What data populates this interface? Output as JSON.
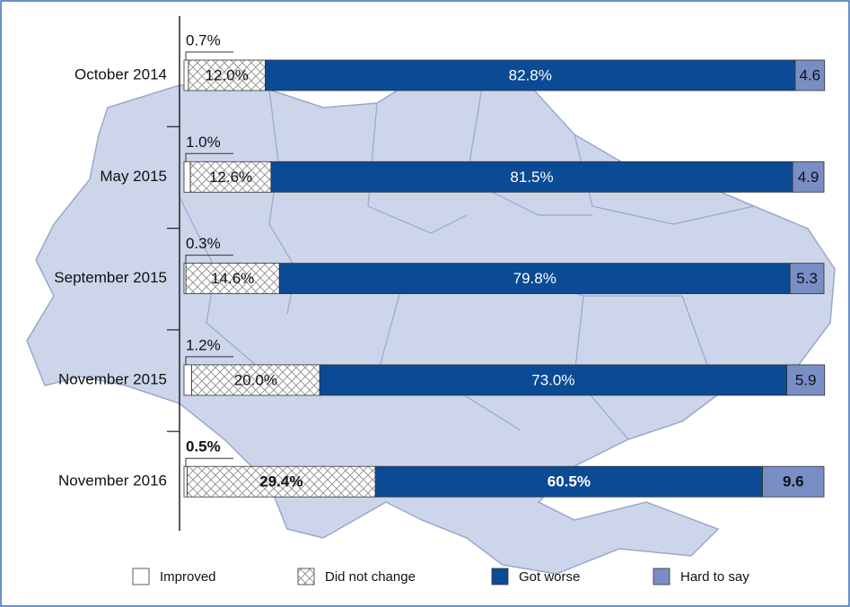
{
  "chart_data": {
    "type": "stacked-barh",
    "categories": [
      "October 2014",
      "May 2015",
      "September 2015",
      "November 2015",
      "November 2016"
    ],
    "xlim": [
      0,
      100
    ],
    "series": [
      {
        "name": "Improved",
        "color": "#ffffff",
        "values": [
          0.7,
          1.0,
          0.3,
          1.2,
          0.5
        ],
        "value_labels": [
          "0.7%",
          "1.0%",
          "0.3%",
          "1.2%",
          "0.5%"
        ]
      },
      {
        "name": "Did not change",
        "color": "#ffffff",
        "pattern": "crosshatch",
        "values": [
          12.0,
          12.6,
          14.6,
          20.0,
          29.4
        ],
        "value_labels": [
          "12.0%",
          "12.6%",
          "14.6%",
          "20.0%",
          "29.4%"
        ]
      },
      {
        "name": "Got worse",
        "color": "#0b4a94",
        "values": [
          82.8,
          81.5,
          79.8,
          73.0,
          60.5
        ],
        "value_labels": [
          "82.8%",
          "81.5%",
          "79.8%",
          "73.0%",
          "60.5%"
        ]
      },
      {
        "name": "Hard to say",
        "color": "#7a8ec6",
        "values": [
          4.6,
          4.9,
          5.3,
          5.9,
          9.6
        ]
      }
    ]
  }
}
